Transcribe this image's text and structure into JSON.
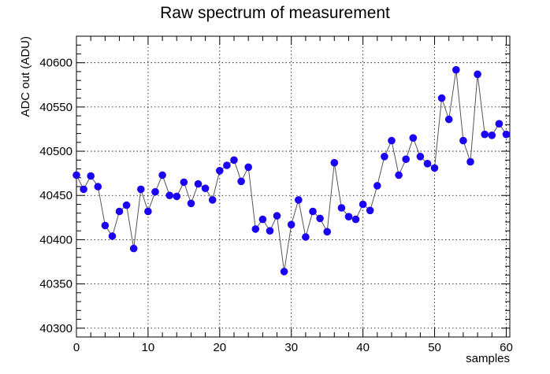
{
  "chart_data": {
    "type": "scatter",
    "title": "Raw spectrum of measurement",
    "xlabel": "samples",
    "ylabel": "ADC out (ADU)",
    "xlim": [
      0,
      60.5
    ],
    "ylim": [
      40290,
      40630
    ],
    "x_ticks": [
      0,
      10,
      20,
      30,
      40,
      50,
      60
    ],
    "y_ticks": [
      40300,
      40350,
      40400,
      40450,
      40500,
      40550,
      40600
    ],
    "grid": true,
    "marker_color": "#1a00f5",
    "line_color": "#555555",
    "series": [
      {
        "x": [
          0,
          1,
          2,
          3,
          4,
          5,
          6,
          7,
          8,
          9,
          10,
          11,
          12,
          13,
          14,
          15,
          16,
          17,
          18,
          19,
          20,
          21,
          22,
          23,
          24,
          25,
          26,
          27,
          28,
          29,
          30,
          31,
          32,
          33,
          34,
          35,
          36,
          37,
          38,
          39,
          40,
          41,
          42,
          43,
          44,
          45,
          46,
          47,
          48,
          49,
          50,
          51,
          52,
          53,
          54,
          55,
          56,
          57,
          58,
          59,
          60
        ],
        "values": [
          40473,
          40457,
          40472,
          40460,
          40416,
          40404,
          40432,
          40439,
          40390,
          40457,
          40432,
          40454,
          40473,
          40450,
          40449,
          40465,
          40441,
          40463,
          40458,
          40445,
          40478,
          40484,
          40490,
          40466,
          40482,
          40412,
          40423,
          40410,
          40427,
          40364,
          40417,
          40445,
          40403,
          40432,
          40424,
          40409,
          40487,
          40436,
          40426,
          40423,
          40440,
          40433,
          40461,
          40494,
          40512,
          40473,
          40491,
          40515,
          40494,
          40486,
          40481,
          40560,
          40536,
          40592,
          40512,
          40488,
          40587,
          40519,
          40518,
          40531,
          40519
        ]
      }
    ]
  }
}
